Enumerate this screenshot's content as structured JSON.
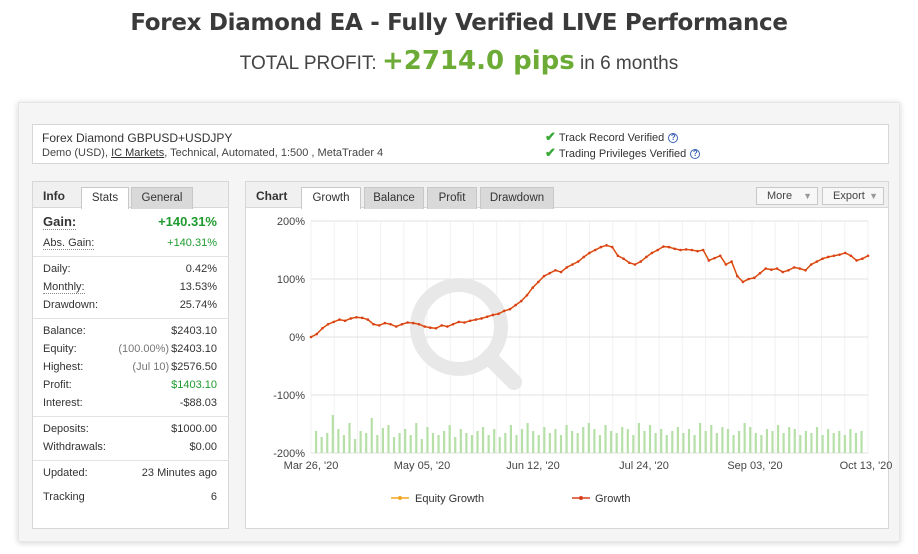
{
  "header": {
    "title": "Forex Diamond EA - Fully Verified LIVE Performance",
    "sub_prefix": "TOTAL PROFIT: ",
    "sub_value": "+2714.0 pips",
    "sub_suffix": " in 6 months"
  },
  "account": {
    "name": "Forex Diamond GBPUSD+USDJPY",
    "meta_prefix": "Demo (USD), ",
    "broker": "IC Markets",
    "meta_suffix": ", Technical, Automated, 1:500 , MetaTrader 4",
    "verify": [
      "Track Record Verified",
      "Trading Privileges Verified"
    ]
  },
  "info": {
    "title": "Info",
    "tabs": [
      "Stats",
      "General"
    ],
    "gain_label": "Gain:",
    "gain_value": "+140.31%",
    "abs_gain_label": "Abs. Gain:",
    "abs_gain_value": "+140.31%",
    "daily_label": "Daily:",
    "daily_value": "0.42%",
    "monthly_label": "Monthly:",
    "monthly_value": "13.53%",
    "drawdown_label": "Drawdown:",
    "drawdown_value": "25.74%",
    "balance_label": "Balance:",
    "balance_value": "$2403.10",
    "equity_label": "Equity:",
    "equity_pct": "(100.00%)",
    "equity_value": "$2403.10",
    "highest_label": "Highest:",
    "highest_date": "(Jul 10)",
    "highest_value": "$2576.50",
    "profit_label": "Profit:",
    "profit_value": "$1403.10",
    "interest_label": "Interest:",
    "interest_value": "-$88.03",
    "deposits_label": "Deposits:",
    "deposits_value": "$1000.00",
    "withdrawals_label": "Withdrawals:",
    "withdrawals_value": "$0.00",
    "updated_label": "Updated:",
    "updated_value": "23 Minutes ago",
    "tracking_label": "Tracking",
    "tracking_value": "6"
  },
  "chart_panel": {
    "title": "Chart",
    "tabs": [
      "Growth",
      "Balance",
      "Profit",
      "Drawdown"
    ],
    "more": "More",
    "export": "Export"
  },
  "chart_data": {
    "type": "line",
    "y_ticks": [
      "200%",
      "100%",
      "0%",
      "-100%",
      "-200%"
    ],
    "ylim": [
      -200,
      200
    ],
    "x_ticks": [
      "Mar 26, '20",
      "May 05, '20",
      "Jun 12, '20",
      "Jul 24, '20",
      "Sep 03, '20",
      "Oct 13, '20"
    ],
    "series": [
      {
        "name": "Equity Growth",
        "color": "#f5a623"
      },
      {
        "name": "Growth",
        "color": "#d9401b",
        "values": [
          0,
          5,
          15,
          22,
          26,
          30,
          28,
          32,
          34,
          33,
          30,
          22,
          20,
          24,
          22,
          18,
          22,
          25,
          24,
          22,
          18,
          16,
          15,
          20,
          18,
          22,
          26,
          25,
          28,
          30,
          32,
          35,
          38,
          40,
          45,
          48,
          55,
          62,
          72,
          85,
          95,
          105,
          110,
          115,
          112,
          120,
          125,
          130,
          138,
          145,
          150,
          155,
          158,
          155,
          140,
          135,
          128,
          125,
          130,
          138,
          145,
          150,
          156,
          155,
          152,
          150,
          151,
          150,
          148,
          150,
          132,
          136,
          140,
          125,
          130,
          105,
          95,
          100,
          102,
          110,
          118,
          116,
          118,
          112,
          115,
          120,
          118,
          115,
          125,
          130,
          135,
          138,
          140,
          142,
          145,
          140,
          132,
          135,
          140
        ]
      }
    ],
    "volume": [
      22,
      16,
      20,
      38,
      24,
      18,
      30,
      14,
      22,
      20,
      35,
      18,
      25,
      28,
      16,
      20,
      24,
      18,
      30,
      14,
      26,
      20,
      18,
      22,
      28,
      16,
      24,
      20,
      18,
      22,
      26,
      18,
      24,
      16,
      20,
      28,
      18,
      24,
      30,
      22,
      18,
      26,
      20,
      24,
      18,
      28,
      22,
      20,
      26,
      30,
      24,
      18,
      28,
      22,
      20,
      26,
      24,
      18,
      30,
      22,
      28,
      20,
      24,
      18,
      22,
      26,
      20,
      24,
      18,
      30,
      22,
      28,
      20,
      26,
      24,
      18,
      22,
      30,
      26,
      20,
      18,
      24,
      22,
      28,
      20,
      26,
      24,
      18,
      22,
      20,
      26,
      18,
      24,
      20,
      22,
      18,
      24,
      20,
      22
    ]
  }
}
